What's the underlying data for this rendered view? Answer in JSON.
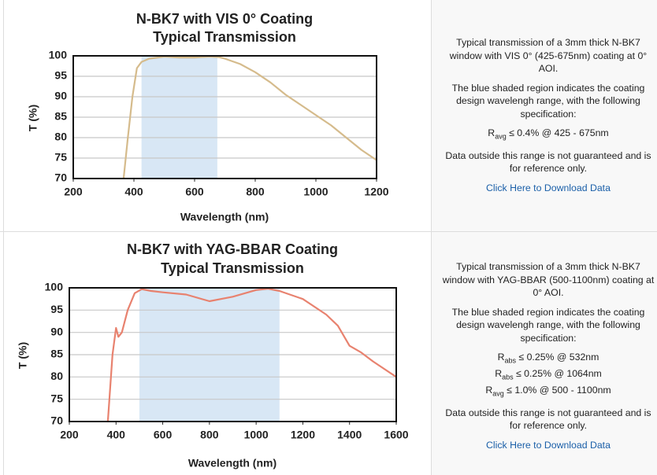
{
  "chart_data": [
    {
      "type": "line",
      "title": "N-BK7 with VIS 0° Coating",
      "subtitle": "Typical Transmission",
      "x_label": "Wavelength (nm)",
      "y_label": "T (%)",
      "x": [
        366,
        380,
        395,
        410,
        425,
        450,
        500,
        550,
        600,
        650,
        680,
        700,
        750,
        800,
        850,
        900,
        950,
        1000,
        1050,
        1100,
        1150,
        1200
      ],
      "values": [
        70,
        80,
        90,
        97,
        98.5,
        99.3,
        99.8,
        99.6,
        99.6,
        99.8,
        99.7,
        99.3,
        98,
        96,
        93.5,
        90.5,
        88,
        85.5,
        83,
        80,
        77,
        74.5
      ],
      "color": "#d5bb8c",
      "highlight": [
        425,
        675
      ],
      "highlight_color": "#d8e7f5",
      "xlim": [
        200,
        1200
      ],
      "xticks": [
        200,
        400,
        600,
        800,
        1000,
        1200
      ],
      "ylim": [
        70,
        100
      ],
      "yticks": [
        70,
        75,
        80,
        85,
        90,
        95,
        100
      ],
      "grid": true
    },
    {
      "type": "line",
      "title": "N-BK7 with YAG-BBAR Coating",
      "subtitle": "Typical Transmission",
      "x_label": "Wavelength (nm)",
      "y_label": "T (%)",
      "x": [
        365,
        385,
        400,
        410,
        425,
        450,
        480,
        510,
        550,
        600,
        700,
        800,
        900,
        1000,
        1050,
        1100,
        1200,
        1300,
        1350,
        1400,
        1450,
        1500,
        1600
      ],
      "values": [
        70,
        85,
        91,
        89,
        90,
        95,
        98.8,
        99.7,
        99.3,
        99,
        98.5,
        97,
        98,
        99.5,
        99.8,
        99.3,
        97.5,
        94,
        91.5,
        87,
        85.5,
        83.5,
        80
      ],
      "color": "#e8826f",
      "highlight": [
        500,
        1100
      ],
      "highlight_color": "#d8e7f5",
      "xlim": [
        200,
        1600
      ],
      "xticks": [
        200,
        400,
        600,
        800,
        1000,
        1200,
        1400,
        1600
      ],
      "ylim": [
        70,
        100
      ],
      "yticks": [
        70,
        75,
        80,
        85,
        90,
        95,
        100
      ],
      "grid": true
    }
  ],
  "panels": [
    {
      "paragraphs": [
        "Typical transmission of a 3mm thick N-BK7 window with VIS 0° (425-675nm) coating at 0° AOI.",
        "The blue shaded region indicates the coating design wavelengh range, with the following specification:"
      ],
      "specs": [
        {
          "symbol": "R",
          "sub": "avg",
          "text": " ≤ 0.4% @ 425 - 675nm"
        }
      ],
      "note": "Data outside this range is not guaranteed and is for reference only.",
      "link": "Click Here to Download Data"
    },
    {
      "paragraphs": [
        "Typical transmission of a 3mm thick N-BK7 window with YAG-BBAR (500-1100nm) coating at 0° AOI.",
        "The blue shaded region indicates the coating design wavelengh range, with the following specification:"
      ],
      "specs": [
        {
          "symbol": "R",
          "sub": "abs",
          "text": " ≤ 0.25% @ 532nm"
        },
        {
          "symbol": "R",
          "sub": "abs",
          "text": " ≤ 0.25% @ 1064nm"
        },
        {
          "symbol": "R",
          "sub": "avg",
          "text": " ≤ 1.0% @ 500 - 1100nm"
        }
      ],
      "note": "Data outside this range is not guaranteed and is for reference only.",
      "link": "Click Here to Download Data"
    }
  ]
}
